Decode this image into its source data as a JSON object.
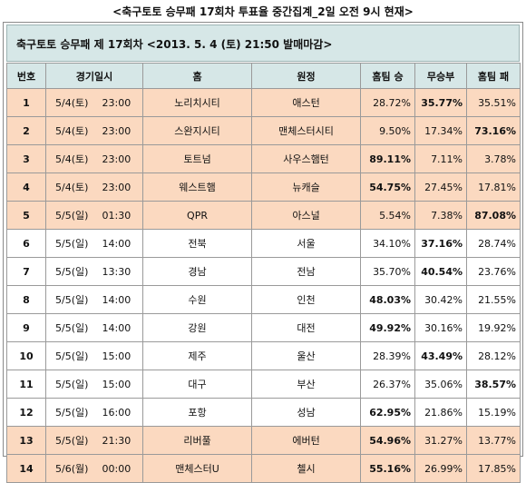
{
  "title": "<축구토토 승무패 17회차 투표율 중간집계_2일 오전 9시 현재>",
  "header": "축구토토 승무패 제 17회차 <2013. 5. 4 (토) 21:50 발매마감>",
  "columns": {
    "no": "번호",
    "schedule": "경기일시",
    "home": "홈",
    "away": "원정",
    "win": "홈팀 승",
    "draw": "무승부",
    "lose": "홈팀 패"
  },
  "rows": [
    {
      "no": "1",
      "date": "5/4(토)",
      "time": "23:00",
      "home": "노리치시티",
      "away": "애스턴",
      "win": "28.72%",
      "draw": "35.77%",
      "lose": "35.51%",
      "max": "draw",
      "shade": "peach"
    },
    {
      "no": "2",
      "date": "5/4(토)",
      "time": "23:00",
      "home": "스완지시티",
      "away": "맨체스터시티",
      "win": "9.50%",
      "draw": "17.34%",
      "lose": "73.16%",
      "max": "lose",
      "shade": "peach"
    },
    {
      "no": "3",
      "date": "5/4(토)",
      "time": "23:00",
      "home": "토트넘",
      "away": "사우스햄턴",
      "win": "89.11%",
      "draw": "7.11%",
      "lose": "3.78%",
      "max": "win",
      "shade": "peach"
    },
    {
      "no": "4",
      "date": "5/4(토)",
      "time": "23:00",
      "home": "웨스트햄",
      "away": "뉴캐슬",
      "win": "54.75%",
      "draw": "27.45%",
      "lose": "17.81%",
      "max": "win",
      "shade": "peach"
    },
    {
      "no": "5",
      "date": "5/5(일)",
      "time": "01:30",
      "home": "QPR",
      "away": "아스널",
      "win": "5.54%",
      "draw": "7.38%",
      "lose": "87.08%",
      "max": "lose",
      "shade": "peach"
    },
    {
      "no": "6",
      "date": "5/5(일)",
      "time": "14:00",
      "home": "전북",
      "away": "서울",
      "win": "34.10%",
      "draw": "37.16%",
      "lose": "28.74%",
      "max": "draw",
      "shade": "white"
    },
    {
      "no": "7",
      "date": "5/5(일)",
      "time": "13:30",
      "home": "경남",
      "away": "전남",
      "win": "35.70%",
      "draw": "40.54%",
      "lose": "23.76%",
      "max": "draw",
      "shade": "white"
    },
    {
      "no": "8",
      "date": "5/5(일)",
      "time": "14:00",
      "home": "수원",
      "away": "인천",
      "win": "48.03%",
      "draw": "30.42%",
      "lose": "21.55%",
      "max": "win",
      "shade": "white"
    },
    {
      "no": "9",
      "date": "5/5(일)",
      "time": "14:00",
      "home": "강원",
      "away": "대전",
      "win": "49.92%",
      "draw": "30.16%",
      "lose": "19.92%",
      "max": "win",
      "shade": "white"
    },
    {
      "no": "10",
      "date": "5/5(일)",
      "time": "15:00",
      "home": "제주",
      "away": "울산",
      "win": "28.39%",
      "draw": "43.49%",
      "lose": "28.12%",
      "max": "draw",
      "shade": "white"
    },
    {
      "no": "11",
      "date": "5/5(일)",
      "time": "15:00",
      "home": "대구",
      "away": "부산",
      "win": "26.37%",
      "draw": "35.06%",
      "lose": "38.57%",
      "max": "lose",
      "shade": "white"
    },
    {
      "no": "12",
      "date": "5/5(일)",
      "time": "16:00",
      "home": "포항",
      "away": "성남",
      "win": "62.95%",
      "draw": "21.86%",
      "lose": "15.19%",
      "max": "win",
      "shade": "white"
    },
    {
      "no": "13",
      "date": "5/5(일)",
      "time": "21:30",
      "home": "리버풀",
      "away": "에버턴",
      "win": "54.96%",
      "draw": "31.27%",
      "lose": "13.77%",
      "max": "win",
      "shade": "peach"
    },
    {
      "no": "14",
      "date": "5/6(월)",
      "time": "00:00",
      "home": "맨체스터U",
      "away": "첼시",
      "win": "55.16%",
      "draw": "26.99%",
      "lose": "17.85%",
      "max": "win",
      "shade": "peach"
    }
  ],
  "colors": {
    "header_bg": "#d6e7e7",
    "peach_row": "#fbd9c0",
    "border": "#9a9a9a"
  }
}
